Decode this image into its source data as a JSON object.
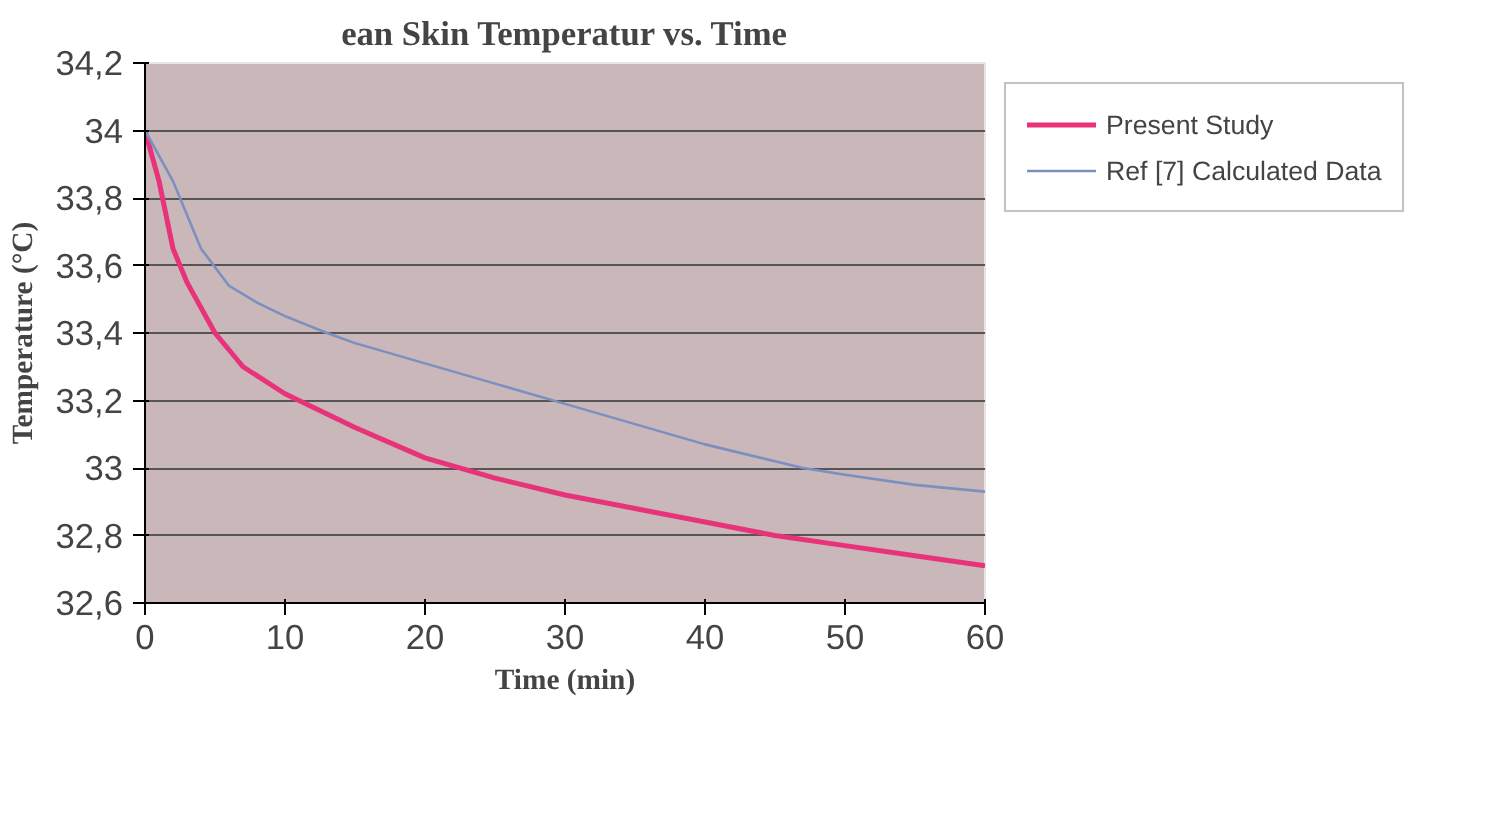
{
  "chart_data": {
    "type": "line",
    "title": "ean Skin Temperatur vs. Time",
    "xlabel": "Time (min)",
    "ylabel": "Temperature (°C)",
    "xlim": [
      0,
      60
    ],
    "xticks": [
      0,
      10,
      20,
      30,
      40,
      50,
      60
    ],
    "ylim": [
      32.6,
      34.2
    ],
    "yticks": [
      {
        "value": 32.6,
        "label": "32,6"
      },
      {
        "value": 32.8,
        "label": "32,8"
      },
      {
        "value": 33,
        "label": "33"
      },
      {
        "value": 33.2,
        "label": "33,2"
      },
      {
        "value": 33.4,
        "label": "33,4"
      },
      {
        "value": 33.6,
        "label": "33,6"
      },
      {
        "value": 33.8,
        "label": "33,8"
      },
      {
        "value": 34,
        "label": "34"
      },
      {
        "value": 34.2,
        "label": "34,2"
      }
    ],
    "grid": "y",
    "legend": "right",
    "marker": "none",
    "line_style": "solid",
    "series": [
      {
        "name": "Present Study",
        "color": "#e8337a",
        "x": [
          0,
          1,
          2,
          3,
          5,
          7,
          10,
          15,
          20,
          25,
          30,
          35,
          40,
          45,
          50,
          55,
          60
        ],
        "values": [
          34,
          33.85,
          33.65,
          33.55,
          33.4,
          33.3,
          33.22,
          33.12,
          33.03,
          32.97,
          32.92,
          32.88,
          32.84,
          32.8,
          32.77,
          32.74,
          32.71
        ]
      },
      {
        "name": "Ref [7] Calculated Data",
        "color": "#7b8fc0",
        "x": [
          0,
          2,
          4,
          6,
          8,
          10,
          13,
          15,
          20,
          25,
          30,
          35,
          40,
          45,
          47,
          50,
          55,
          60
        ],
        "values": [
          34,
          33.85,
          33.65,
          33.54,
          33.49,
          33.45,
          33.4,
          33.37,
          33.31,
          33.25,
          33.19,
          33.13,
          33.07,
          33.02,
          33.0,
          32.98,
          32.95,
          32.93
        ]
      }
    ]
  }
}
